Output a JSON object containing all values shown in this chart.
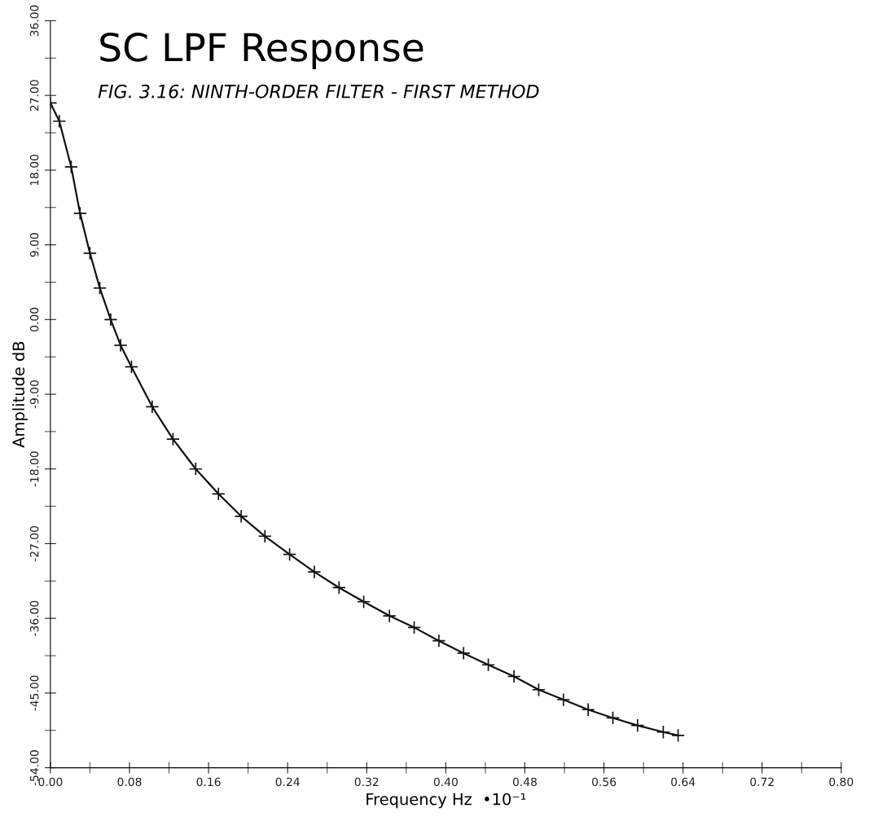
{
  "chart_data": {
    "type": "line",
    "title": "SC LPF Response",
    "subtitle": "FIG. 3.16: NINTH-ORDER FILTER - FIRST METHOD",
    "xlabel": "Frequency Hz  •10⁻¹",
    "ylabel": "Amplitude dB",
    "x": [
      0,
      0.009,
      0.021,
      0.03,
      0.04,
      0.05,
      0.061,
      0.071,
      0.082,
      0.103,
      0.124,
      0.147,
      0.17,
      0.193,
      0.217,
      0.242,
      0.267,
      0.292,
      0.317,
      0.343,
      0.368,
      0.393,
      0.418,
      0.443,
      0.469,
      0.494,
      0.519,
      0.544,
      0.569,
      0.594,
      0.62,
      0.635
    ],
    "series": [
      {
        "color": "#111111",
        "values": [
          26.1,
          23.9,
          18.4,
          12.8,
          8.0,
          3.8,
          0.0,
          -3.1,
          -5.7,
          -10.5,
          -14.4,
          -18.0,
          -21.0,
          -23.7,
          -26.1,
          -28.3,
          -30.4,
          -32.3,
          -34.0,
          -35.7,
          -37.1,
          -38.7,
          -40.2,
          -41.6,
          -43.0,
          -44.6,
          -45.8,
          -47.0,
          -48.0,
          -48.9,
          -49.7,
          -50.1
        ]
      }
    ],
    "marker": "cross",
    "line_style": "solid",
    "grid": false,
    "legend": false,
    "xlim": [
      0,
      0.8
    ],
    "xticks": [
      {
        "value": 0,
        "label": "0.00"
      },
      {
        "value": 0.08,
        "label": "0.08"
      },
      {
        "value": 0.16,
        "label": "0.16"
      },
      {
        "value": 0.24,
        "label": "0.24"
      },
      {
        "value": 0.32,
        "label": "0.32"
      },
      {
        "value": 0.4,
        "label": "0.40"
      },
      {
        "value": 0.48,
        "label": "0.48"
      },
      {
        "value": 0.56,
        "label": "0.56"
      },
      {
        "value": 0.64,
        "label": "0.64"
      },
      {
        "value": 0.72,
        "label": "0.72"
      },
      {
        "value": 0.8,
        "label": "0.80"
      }
    ],
    "ylim": [
      -54,
      36
    ],
    "yticks": [
      {
        "value": -54,
        "label": "-54.00"
      },
      {
        "value": -45,
        "label": "-45.00"
      },
      {
        "value": -36,
        "label": "-36.00"
      },
      {
        "value": -27,
        "label": "-27.00"
      },
      {
        "value": -18,
        "label": "-18.00"
      },
      {
        "value": -9,
        "label": "-9.00"
      },
      {
        "value": 0,
        "label": "0.00"
      },
      {
        "value": 9,
        "label": "9.00"
      },
      {
        "value": 18,
        "label": "18.00"
      },
      {
        "value": 27,
        "label": "27.00"
      },
      {
        "value": 36,
        "label": "36.00"
      }
    ]
  }
}
